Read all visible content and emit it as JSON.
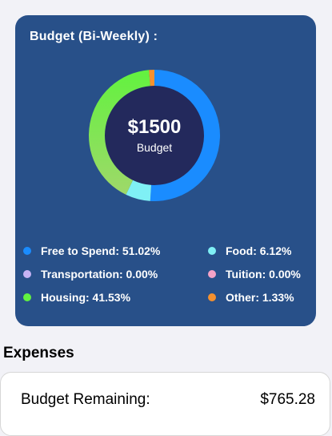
{
  "budget_card": {
    "title": "Budget (Bi-Weekly) :",
    "center_amount": "$1500",
    "center_label": "Budget"
  },
  "donut": {
    "colors": {
      "free": "#1a8cff",
      "food": "#7ff0f5",
      "transportation": "#c7b3f5",
      "tuition": "#f5a3c7",
      "housing": "#62f23f",
      "housing_fade": "#9fd86a",
      "other": "#f5912f"
    }
  },
  "legend": {
    "free": "Free to Spend: 51.02%",
    "food": "Food: 6.12%",
    "transportation": "Transportation: 0.00%",
    "tuition": "Tuition: 0.00%",
    "housing": "Housing: 41.53%",
    "other": "Other: 1.33%"
  },
  "expenses": {
    "section_title": "Expenses",
    "remaining_label": "Budget Remaining:",
    "remaining_value": "$765.28"
  },
  "chart_data": {
    "type": "pie",
    "categories": [
      "Free to Spend",
      "Food",
      "Transportation",
      "Tuition",
      "Housing",
      "Other"
    ],
    "values": [
      51.02,
      6.12,
      0.0,
      0.0,
      41.53,
      1.33
    ],
    "colors": [
      "#1a8cff",
      "#7ff0f5",
      "#c7b3f5",
      "#f5a3c7",
      "#62f23f",
      "#f5912f"
    ],
    "title": "Budget (Bi-Weekly) :",
    "center_text": "$1500 Budget"
  }
}
